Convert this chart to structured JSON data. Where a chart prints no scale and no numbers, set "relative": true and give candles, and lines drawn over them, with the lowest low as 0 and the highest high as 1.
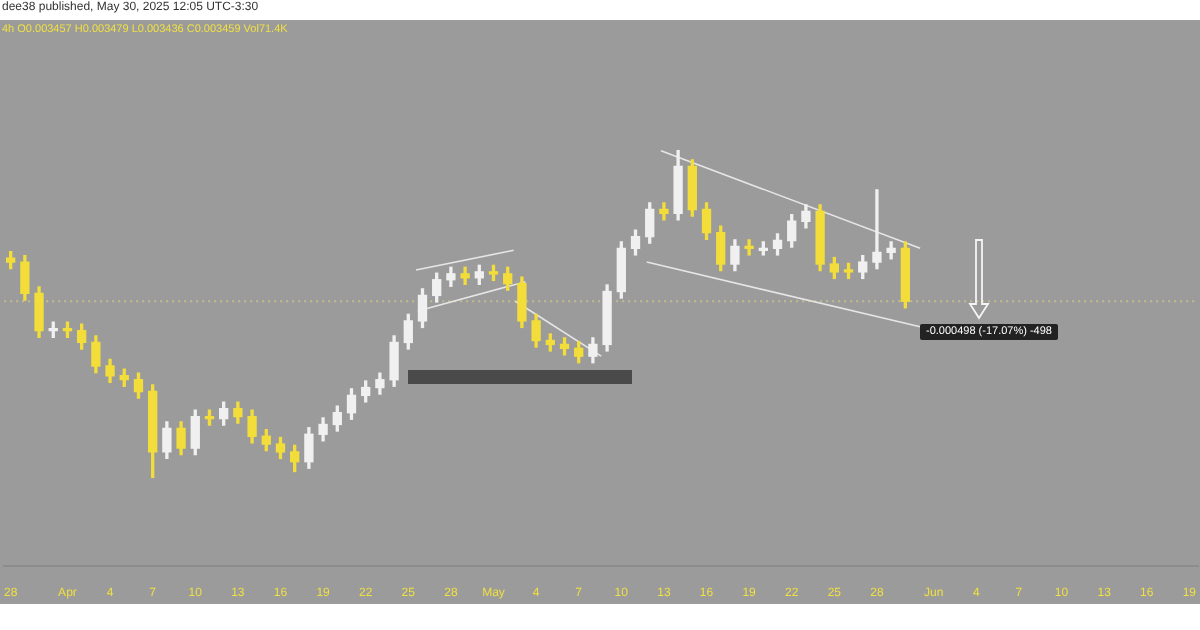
{
  "chart_data": {
    "type": "candlestick",
    "title": "dee38 published, May 30, 2025 12:05 UTC-3:30",
    "subtitle": "4h O0.003457 H0.003479 L0.003436 C0.003459 Vol71.4K",
    "relative": true,
    "x": [
      "2025-03-28",
      "2025-03-29",
      "2025-03-30",
      "2025-03-31",
      "2025-04-01",
      "2025-04-02",
      "2025-04-03",
      "2025-04-04",
      "2025-04-05",
      "2025-04-06",
      "2025-04-07",
      "2025-04-08",
      "2025-04-09",
      "2025-04-10",
      "2025-04-11",
      "2025-04-12",
      "2025-04-13",
      "2025-04-14",
      "2025-04-15",
      "2025-04-16",
      "2025-04-17",
      "2025-04-18",
      "2025-04-19",
      "2025-04-20",
      "2025-04-21",
      "2025-04-22",
      "2025-04-23",
      "2025-04-24",
      "2025-04-25",
      "2025-04-26",
      "2025-04-27",
      "2025-04-28",
      "2025-04-29",
      "2025-04-30",
      "2025-05-01",
      "2025-05-02",
      "2025-05-03",
      "2025-05-04",
      "2025-05-05",
      "2025-05-06",
      "2025-05-07",
      "2025-05-08",
      "2025-05-09",
      "2025-05-10",
      "2025-05-11",
      "2025-05-12",
      "2025-05-13",
      "2025-05-14",
      "2025-05-15",
      "2025-05-16",
      "2025-05-17",
      "2025-05-18",
      "2025-05-19",
      "2025-05-20",
      "2025-05-21",
      "2025-05-22",
      "2025-05-23",
      "2025-05-24",
      "2025-05-25",
      "2025-05-26",
      "2025-05-27",
      "2025-05-28",
      "2025-05-29",
      "2025-05-30"
    ],
    "ohlc": [
      [
        0.671,
        0.691,
        0.639,
        0.659
      ],
      [
        0.659,
        0.679,
        0.543,
        0.563
      ],
      [
        0.563,
        0.583,
        0.429,
        0.449
      ],
      [
        0.449,
        0.475,
        0.429,
        0.455
      ],
      [
        0.455,
        0.475,
        0.429,
        0.449
      ],
      [
        0.449,
        0.469,
        0.393,
        0.413
      ],
      [
        0.413,
        0.433,
        0.321,
        0.341
      ],
      [
        0.341,
        0.361,
        0.291,
        0.311
      ],
      [
        0.311,
        0.331,
        0.279,
        0.299
      ],
      [
        0.299,
        0.319,
        0.243,
        0.263
      ],
      [
        0.263,
        0.283,
        0,
        0.078
      ],
      [
        0.078,
        0.17,
        0.058,
        0.15
      ],
      [
        0.15,
        0.17,
        0.07,
        0.09
      ],
      [
        0.09,
        0.206,
        0.07,
        0.186
      ],
      [
        0.186,
        0.206,
        0.16,
        0.18
      ],
      [
        0.18,
        0.23,
        0.16,
        0.21
      ],
      [
        0.21,
        0.23,
        0.166,
        0.186
      ],
      [
        0.186,
        0.206,
        0.106,
        0.126
      ],
      [
        0.126,
        0.146,
        0.082,
        0.102
      ],
      [
        0.102,
        0.122,
        0.058,
        0.078
      ],
      [
        0.078,
        0.098,
        0.018,
        0.048
      ],
      [
        0.048,
        0.152,
        0.028,
        0.132
      ],
      [
        0.132,
        0.182,
        0.112,
        0.162
      ],
      [
        0.162,
        0.218,
        0.142,
        0.198
      ],
      [
        0.198,
        0.271,
        0.178,
        0.251
      ],
      [
        0.251,
        0.295,
        0.231,
        0.275
      ],
      [
        0.275,
        0.319,
        0.255,
        0.299
      ],
      [
        0.299,
        0.433,
        0.279,
        0.413
      ],
      [
        0.413,
        0.499,
        0.393,
        0.479
      ],
      [
        0.479,
        0.577,
        0.459,
        0.557
      ],
      [
        0.557,
        0.625,
        0.537,
        0.605
      ],
      [
        0.605,
        0.643,
        0.585,
        0.623
      ],
      [
        0.623,
        0.643,
        0.591,
        0.611
      ],
      [
        0.611,
        0.649,
        0.591,
        0.629
      ],
      [
        0.629,
        0.649,
        0.603,
        0.623
      ],
      [
        0.623,
        0.643,
        0.573,
        0.593
      ],
      [
        0.593,
        0.613,
        0.459,
        0.479
      ],
      [
        0.479,
        0.499,
        0.399,
        0.419
      ],
      [
        0.419,
        0.439,
        0.387,
        0.407
      ],
      [
        0.407,
        0.427,
        0.375,
        0.395
      ],
      [
        0.395,
        0.415,
        0.351,
        0.371
      ],
      [
        0.371,
        0.427,
        0.351,
        0.407
      ],
      [
        0.407,
        0.589,
        0.387,
        0.569
      ],
      [
        0.569,
        0.721,
        0.549,
        0.701
      ],
      [
        0.701,
        0.757,
        0.681,
        0.737
      ],
      [
        0.737,
        0.84,
        0.717,
        0.82
      ],
      [
        0.82,
        0.84,
        0.788,
        0.808
      ],
      [
        0.808,
        1,
        0.788,
        0.952
      ],
      [
        0.952,
        0.972,
        0.8,
        0.82
      ],
      [
        0.82,
        0.84,
        0.729,
        0.749
      ],
      [
        0.749,
        0.769,
        0.633,
        0.653
      ],
      [
        0.653,
        0.727,
        0.633,
        0.707
      ],
      [
        0.707,
        0.727,
        0.681,
        0.701
      ],
      [
        0.695,
        0.721,
        0.681,
        0.701
      ],
      [
        0.701,
        0.745,
        0.681,
        0.725
      ],
      [
        0.725,
        0.804,
        0.705,
        0.784
      ],
      [
        0.784,
        0.834,
        0.764,
        0.814
      ],
      [
        0.814,
        0.834,
        0.633,
        0.653
      ],
      [
        0.653,
        0.673,
        0.609,
        0.629
      ],
      [
        0.635,
        0.655,
        0.609,
        0.629
      ],
      [
        0.629,
        0.679,
        0.609,
        0.659
      ],
      [
        0.659,
        0.88,
        0.639,
        0.689
      ],
      [
        0.689,
        0.721,
        0.669,
        0.701
      ],
      [
        0.701,
        0.721,
        0.519,
        0.539
      ]
    ],
    "colors": [
      "#f2dd3a",
      "#f2dd3a",
      "#f2dd3a",
      "#f0f0f0",
      "#f2dd3a",
      "#f2dd3a",
      "#f2dd3a",
      "#f2dd3a",
      "#f2dd3a",
      "#f2dd3a",
      "#f2dd3a",
      "#f0f0f0",
      "#f2dd3a",
      "#f0f0f0",
      "#f2dd3a",
      "#f0f0f0",
      "#f2dd3a",
      "#f2dd3a",
      "#f2dd3a",
      "#f2dd3a",
      "#f2dd3a",
      "#f0f0f0",
      "#f0f0f0",
      "#f0f0f0",
      "#f0f0f0",
      "#f0f0f0",
      "#f0f0f0",
      "#f0f0f0",
      "#f0f0f0",
      "#f0f0f0",
      "#f0f0f0",
      "#f0f0f0",
      "#f2dd3a",
      "#f0f0f0",
      "#f2dd3a",
      "#f2dd3a",
      "#f2dd3a",
      "#f2dd3a",
      "#f2dd3a",
      "#f2dd3a",
      "#f2dd3a",
      "#f0f0f0",
      "#f0f0f0",
      "#f0f0f0",
      "#f0f0f0",
      "#f0f0f0",
      "#f2dd3a",
      "#f0f0f0",
      "#f2dd3a",
      "#f2dd3a",
      "#f2dd3a",
      "#f0f0f0",
      "#f2dd3a",
      "#f0f0f0",
      "#f0f0f0",
      "#f0f0f0",
      "#f0f0f0",
      "#f2dd3a",
      "#f2dd3a",
      "#f2dd3a",
      "#f0f0f0",
      "#f0f0f0",
      "#f0f0f0",
      "#f2dd3a"
    ],
    "xlim": [
      "2025-03-27T13:00",
      "2025-06-19T14:00"
    ],
    "xticks": [
      {
        "value": "2025-03-28",
        "label": "28"
      },
      {
        "value": "2025-04-01",
        "label": "Apr"
      },
      {
        "value": "2025-04-04",
        "label": "4"
      },
      {
        "value": "2025-04-07",
        "label": "7"
      },
      {
        "value": "2025-04-10",
        "label": "10"
      },
      {
        "value": "2025-04-13",
        "label": "13"
      },
      {
        "value": "2025-04-16",
        "label": "16"
      },
      {
        "value": "2025-04-19",
        "label": "19"
      },
      {
        "value": "2025-04-22",
        "label": "22"
      },
      {
        "value": "2025-04-25",
        "label": "25"
      },
      {
        "value": "2025-04-28",
        "label": "28"
      },
      {
        "value": "2025-05-01",
        "label": "May"
      },
      {
        "value": "2025-05-04",
        "label": "4"
      },
      {
        "value": "2025-05-07",
        "label": "7"
      },
      {
        "value": "2025-05-10",
        "label": "10"
      },
      {
        "value": "2025-05-13",
        "label": "13"
      },
      {
        "value": "2025-05-16",
        "label": "16"
      },
      {
        "value": "2025-05-19",
        "label": "19"
      },
      {
        "value": "2025-05-22",
        "label": "22"
      },
      {
        "value": "2025-05-25",
        "label": "25"
      },
      {
        "value": "2025-05-28",
        "label": "28"
      },
      {
        "value": "2025-06-01",
        "label": "Jun"
      },
      {
        "value": "2025-06-04",
        "label": "4"
      },
      {
        "value": "2025-06-07",
        "label": "7"
      },
      {
        "value": "2025-06-10",
        "label": "10"
      },
      {
        "value": "2025-06-13",
        "label": "13"
      },
      {
        "value": "2025-06-16",
        "label": "16"
      },
      {
        "value": "2025-06-19",
        "label": "19"
      }
    ],
    "series": [
      {
        "type": "line",
        "color": "#e6e6e6",
        "x": [
          "2025-04-25T13:00",
          "2025-05-02T10:00"
        ],
        "values": [
          0.635,
          0.695
        ]
      },
      {
        "type": "line",
        "color": "#e6e6e6",
        "x": [
          "2025-04-25T16:00",
          "2025-05-03T06:00"
        ],
        "values": [
          0.509,
          0.599
        ]
      },
      {
        "type": "line",
        "color": "#e6e6e6",
        "x": [
          "2025-05-02T13:00",
          "2025-05-08T14:00"
        ],
        "values": [
          0.539,
          0.371
        ]
      },
      {
        "type": "line",
        "color": "#e6e6e6",
        "x": [
          "2025-05-12T19:00",
          "2025-05-31T01:00"
        ],
        "values": [
          1,
          0.701
        ]
      },
      {
        "type": "line",
        "color": "#e6e6e6",
        "x": [
          "2025-05-11T19:00",
          "2025-05-31T01:00"
        ],
        "values": [
          0.659,
          0.461
        ]
      }
    ],
    "ref_lines": [
      {
        "axis": "y",
        "value": 0.539,
        "color": "#c2bd8c",
        "line_style": "dotted"
      }
    ],
    "annotations": [
      "-0.000498 (-17.07%) -498"
    ]
  }
}
